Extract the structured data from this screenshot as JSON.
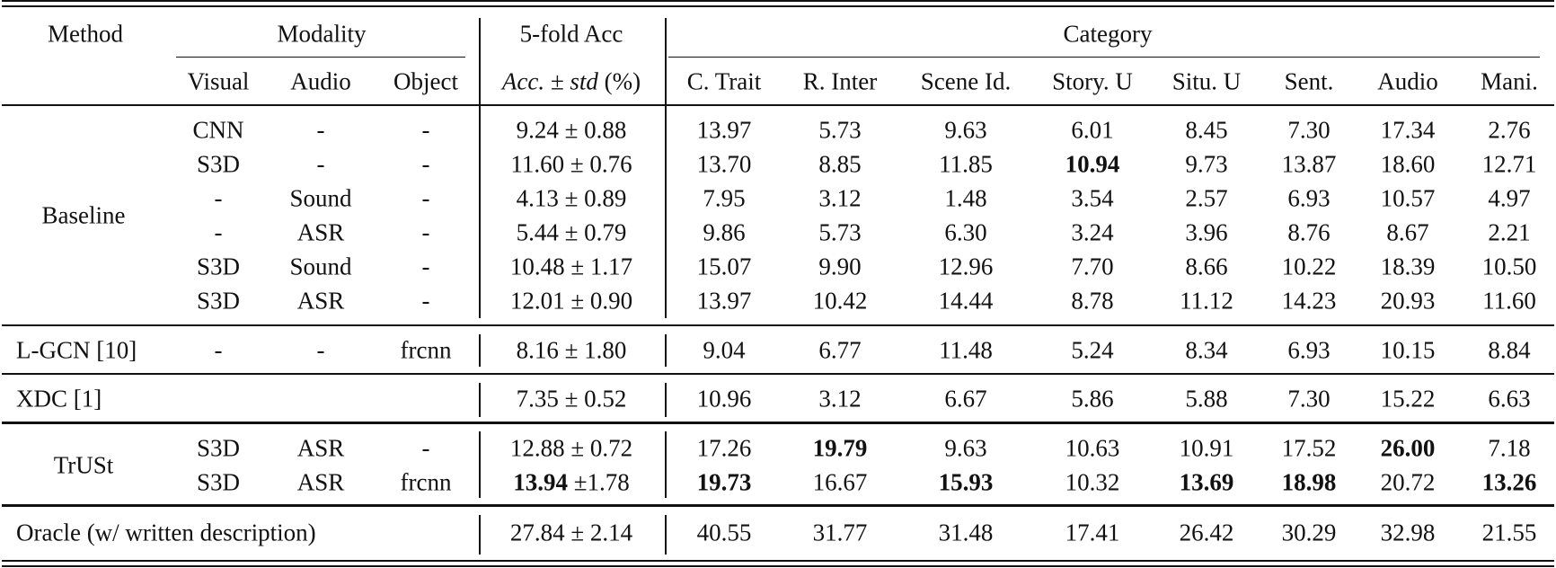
{
  "header": {
    "method": "Method",
    "modality": "Modality",
    "fivefold": "5-fold Acc",
    "category": "Category",
    "visual": "Visual",
    "audio": "Audio",
    "object": "Object",
    "acc_italic": "Acc. ± std",
    "acc_unit": " (%)",
    "categories": [
      "C. Trait",
      "R. Inter",
      "Scene Id.",
      "Story. U",
      "Situ. U",
      "Sent.",
      "Audio",
      "Mani."
    ]
  },
  "groups": {
    "baseline": "Baseline",
    "lgcn": "L-GCN [10]",
    "xdc": "XDC [1]",
    "trust": "TrUSt",
    "oracle": "Oracle (w/ written description)"
  },
  "rows": [
    {
      "visual": "CNN",
      "audio": "-",
      "object": "-",
      "acc": "9.24 ± 0.88",
      "cats": [
        "13.97",
        "5.73",
        "9.63",
        "6.01",
        "8.45",
        "7.30",
        "17.34",
        "2.76"
      ]
    },
    {
      "visual": "S3D",
      "audio": "-",
      "object": "-",
      "acc": "11.60 ± 0.76",
      "cats": [
        "13.70",
        "8.85",
        "11.85",
        "10.94",
        "9.73",
        "13.87",
        "18.60",
        "12.71"
      ]
    },
    {
      "visual": "-",
      "audio": "Sound",
      "object": "-",
      "acc": "4.13 ± 0.89",
      "cats": [
        "7.95",
        "3.12",
        "1.48",
        "3.54",
        "2.57",
        "6.93",
        "10.57",
        "4.97"
      ]
    },
    {
      "visual": "-",
      "audio": "ASR",
      "object": "-",
      "acc": "5.44 ± 0.79",
      "cats": [
        "9.86",
        "5.73",
        "6.30",
        "3.24",
        "3.96",
        "8.76",
        "8.67",
        "2.21"
      ]
    },
    {
      "visual": "S3D",
      "audio": "Sound",
      "object": "-",
      "acc": "10.48 ± 1.17",
      "cats": [
        "15.07",
        "9.90",
        "12.96",
        "7.70",
        "8.66",
        "10.22",
        "18.39",
        "10.50"
      ]
    },
    {
      "visual": "S3D",
      "audio": "ASR",
      "object": "-",
      "acc": "12.01 ± 0.90",
      "cats": [
        "13.97",
        "10.42",
        "14.44",
        "8.78",
        "11.12",
        "14.23",
        "20.93",
        "11.60"
      ]
    },
    {
      "visual": "-",
      "audio": "-",
      "object": "frcnn",
      "acc": "8.16 ± 1.80",
      "cats": [
        "9.04",
        "6.77",
        "11.48",
        "5.24",
        "8.34",
        "6.93",
        "10.15",
        "8.84"
      ]
    },
    {
      "visual": "",
      "audio": "",
      "object": "",
      "acc": "7.35 ± 0.52",
      "cats": [
        "10.96",
        "3.12",
        "6.67",
        "5.86",
        "5.88",
        "7.30",
        "15.22",
        "6.63"
      ]
    },
    {
      "visual": "S3D",
      "audio": "ASR",
      "object": "-",
      "acc": "12.88 ± 0.72",
      "cats": [
        "17.26",
        "19.79",
        "9.63",
        "10.63",
        "10.91",
        "17.52",
        "26.00",
        "7.18"
      ]
    },
    {
      "visual": "S3D",
      "audio": "ASR",
      "object": "frcnn",
      "acc_bold": "13.94",
      "acc_rest": " ±1.78",
      "cats": [
        "19.73",
        "16.67",
        "15.93",
        "10.32",
        "13.69",
        "18.98",
        "20.72",
        "13.26"
      ]
    },
    {
      "visual": "",
      "audio": "",
      "object": "",
      "acc": "27.84 ± 2.14",
      "cats": [
        "40.55",
        "31.77",
        "31.48",
        "17.41",
        "26.42",
        "30.29",
        "32.98",
        "21.55"
      ]
    }
  ],
  "bold_cells": [
    {
      "row": 1,
      "col": 3
    },
    {
      "row": 8,
      "col": 1
    },
    {
      "row": 8,
      "col": 6
    },
    {
      "row": 9,
      "col": 0
    },
    {
      "row": 9,
      "col": 2
    },
    {
      "row": 9,
      "col": 4
    },
    {
      "row": 9,
      "col": 5
    },
    {
      "row": 9,
      "col": 7
    }
  ]
}
